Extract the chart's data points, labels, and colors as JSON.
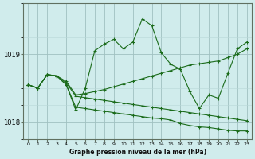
{
  "bg_color": "#d0ecec",
  "grid_color_major": "#a0c0c0",
  "grid_color_minor": "#b8d8d8",
  "line_color": "#1a6b1a",
  "title": "Graphe pression niveau de la mer (hPa)",
  "ylim": [
    1017.75,
    1019.75
  ],
  "xlim": [
    -0.5,
    23.5
  ],
  "yticks": [
    1018,
    1019
  ],
  "xticks": [
    0,
    1,
    2,
    3,
    4,
    5,
    6,
    7,
    8,
    9,
    10,
    11,
    12,
    13,
    14,
    15,
    16,
    17,
    18,
    19,
    20,
    21,
    22,
    23
  ],
  "lines": [
    {
      "x": [
        0,
        1,
        2,
        3,
        4,
        5,
        6,
        7,
        8,
        9,
        10,
        11,
        12,
        13,
        14,
        15,
        16,
        17,
        18,
        19,
        20,
        21,
        22,
        23
      ],
      "y": [
        1018.55,
        1018.5,
        1018.7,
        1018.68,
        1018.55,
        1018.18,
        1018.5,
        1019.05,
        1019.15,
        1019.22,
        1019.08,
        1019.18,
        1019.52,
        1019.42,
        1019.02,
        1018.85,
        1018.78,
        1018.45,
        1018.2,
        1018.4,
        1018.35,
        1018.72,
        1019.08,
        1019.18
      ]
    },
    {
      "x": [
        0,
        1,
        2,
        3,
        4,
        5,
        6,
        7,
        8,
        9,
        10,
        11,
        12,
        13,
        14,
        15,
        16,
        17,
        18,
        19,
        20,
        21,
        22,
        23
      ],
      "y": [
        1018.55,
        1018.5,
        1018.7,
        1018.68,
        1018.6,
        1018.4,
        1018.42,
        1018.45,
        1018.48,
        1018.52,
        1018.56,
        1018.6,
        1018.64,
        1018.68,
        1018.72,
        1018.76,
        1018.8,
        1018.84,
        1018.86,
        1018.88,
        1018.9,
        1018.95,
        1019.0,
        1019.08
      ]
    },
    {
      "x": [
        0,
        1,
        2,
        3,
        4,
        5,
        6,
        7,
        8,
        9,
        10,
        11,
        12,
        13,
        14,
        15,
        16,
        17,
        18,
        19,
        20,
        21,
        22,
        23
      ],
      "y": [
        1018.55,
        1018.5,
        1018.7,
        1018.68,
        1018.58,
        1018.38,
        1018.36,
        1018.34,
        1018.32,
        1018.3,
        1018.28,
        1018.26,
        1018.24,
        1018.22,
        1018.2,
        1018.18,
        1018.16,
        1018.14,
        1018.12,
        1018.1,
        1018.08,
        1018.06,
        1018.04,
        1018.02
      ]
    },
    {
      "x": [
        0,
        1,
        2,
        3,
        4,
        5,
        6,
        7,
        8,
        9,
        10,
        11,
        12,
        13,
        14,
        15,
        16,
        17,
        18,
        19,
        20,
        21,
        22,
        23
      ],
      "y": [
        1018.55,
        1018.5,
        1018.7,
        1018.68,
        1018.55,
        1018.22,
        1018.2,
        1018.18,
        1018.16,
        1018.14,
        1018.12,
        1018.1,
        1018.08,
        1018.06,
        1018.05,
        1018.03,
        1017.98,
        1017.95,
        1017.93,
        1017.92,
        1017.9,
        1017.88,
        1017.87,
        1017.87
      ]
    }
  ]
}
